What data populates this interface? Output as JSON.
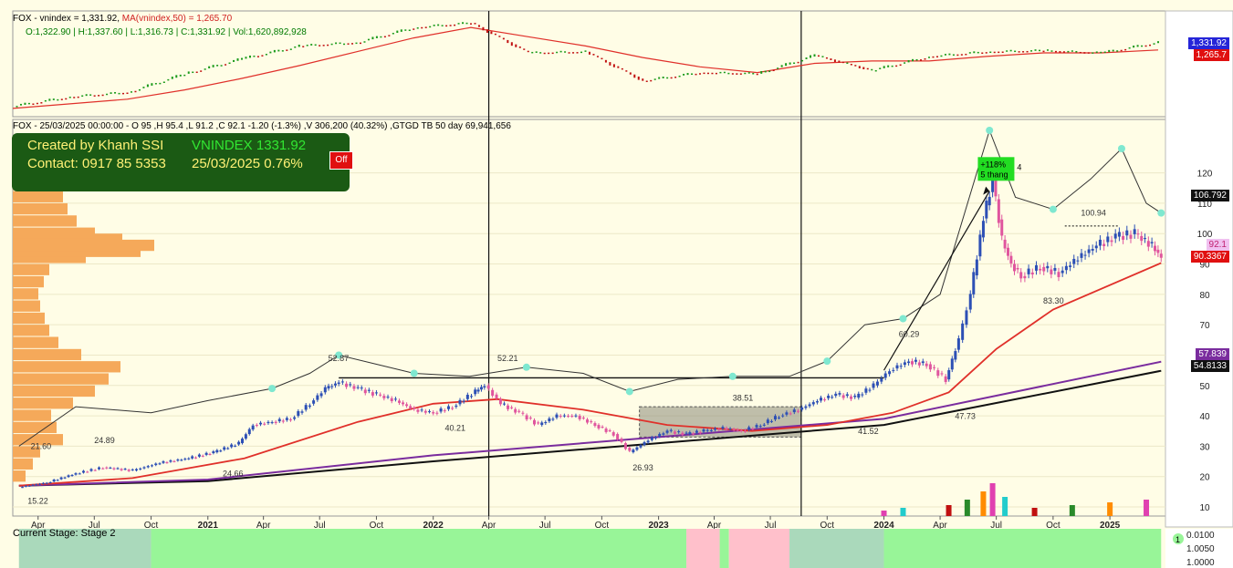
{
  "top_panel": {
    "title_ticker": "FOX - vnindex = 1,331.92, ",
    "title_ma": "MA(vnindex,50) = 1,265.70",
    "ohlc": "O:1,322.90  | H:1,337.60  | L:1,316.73  | C:1,331.92  | Vol:1,620,892,928",
    "tag_price": "1,331.92",
    "tag_ma": "1,265.7"
  },
  "main_panel": {
    "header": "FOX - 25/03/2025 00:00:00  -  O 95 ,H 95.4 ,L 91.2 ,C 92.1 -1.20 (-1.3%) ,V 306,200 (40.32%) ,GTGD TB 50 day 69,941,656",
    "credit_line1": "Created by Khanh SSI",
    "credit_line2": "Contact: 0917 85 5353",
    "credit_index": "VNINDEX 1331.92",
    "credit_date": "25/03/2025  0.76%",
    "off_button": "Off",
    "gain_label_1": "+118%",
    "gain_label_2": "5 thang",
    "gain_suffix": "4",
    "tags": {
      "ref": "106.792",
      "price": "92.1",
      "ma50": "90.3367",
      "ma_purple": "57.839",
      "ma_black": "54.8133"
    }
  },
  "stage_panel": {
    "label": "Current Stage: Stage 2",
    "badge": "1",
    "ticks": [
      "0.0100",
      "1.0050",
      "1.0000"
    ]
  },
  "colors": {
    "background": "#fffde6",
    "up_candle": "#2c4fb5",
    "down_candle": "#e0559e",
    "ma_red": "#e0302a",
    "ma_purple": "#7a2c9e",
    "ma_black": "#111111",
    "rs_line": "#333333",
    "rs_marker": "#7fe8d0",
    "volume_profile": "#f5a95a",
    "stage2_green": "#98f598",
    "stage_pink": "#ffc0cb",
    "stage_grey_green": "#aad9bb"
  },
  "chart_data": [
    {
      "type": "line",
      "title": "vnindex",
      "series": [
        {
          "name": "vnindex",
          "x": [
            "2020-03",
            "2020-06",
            "2020-09",
            "2020-12",
            "2021-03",
            "2021-06",
            "2021-09",
            "2021-12",
            "2022-03",
            "2022-05",
            "2022-08",
            "2022-11",
            "2023-02",
            "2023-05",
            "2023-08",
            "2023-11",
            "2024-02",
            "2024-05",
            "2024-08",
            "2024-11",
            "2025-03"
          ],
          "values": [
            780,
            860,
            900,
            1060,
            1190,
            1300,
            1330,
            1460,
            1500,
            1240,
            1250,
            1000,
            1070,
            1060,
            1220,
            1090,
            1210,
            1250,
            1260,
            1240,
            1331.92
          ]
        },
        {
          "name": "MA(vnindex,50)",
          "values": [
            760,
            800,
            840,
            920,
            1020,
            1130,
            1250,
            1370,
            1460,
            1380,
            1300,
            1200,
            1120,
            1070,
            1150,
            1170,
            1170,
            1210,
            1240,
            1240,
            1265.7
          ]
        }
      ]
    },
    {
      "type": "line",
      "title": "FOX",
      "x_ticks": [
        "Apr",
        "Jul",
        "Oct",
        "2021",
        "Apr",
        "Jul",
        "Oct",
        "2022",
        "Apr",
        "Jul",
        "Oct",
        "2023",
        "Apr",
        "Jul",
        "Oct",
        "2024",
        "Apr",
        "Jul",
        "Oct",
        "2025"
      ],
      "y_ticks": [
        10,
        20,
        30,
        40,
        50,
        60,
        70,
        80,
        90,
        100,
        110,
        120
      ],
      "ylim": [
        7,
        134
      ],
      "close_points": [
        [
          "2020-03-01",
          16.5
        ],
        [
          "2020-04-15",
          18
        ],
        [
          "2020-06-01",
          21
        ],
        [
          "2020-07-15",
          23
        ],
        [
          "2020-09-01",
          22
        ],
        [
          "2020-10-15",
          24.5
        ],
        [
          "2020-12-01",
          26
        ],
        [
          "2021-01-10",
          28
        ],
        [
          "2021-02-20",
          31
        ],
        [
          "2021-03-15",
          37
        ],
        [
          "2021-04-15",
          38
        ],
        [
          "2021-05-15",
          39
        ],
        [
          "2021-06-15",
          44
        ],
        [
          "2021-07-10",
          49
        ],
        [
          "2021-08-01",
          51
        ],
        [
          "2021-09-01",
          49
        ],
        [
          "2021-10-01",
          47
        ],
        [
          "2021-11-01",
          45
        ],
        [
          "2021-12-01",
          42
        ],
        [
          "2022-01-01",
          41
        ],
        [
          "2022-02-01",
          43
        ],
        [
          "2022-03-10",
          48
        ],
        [
          "2022-03-25",
          50
        ],
        [
          "2022-04-20",
          44
        ],
        [
          "2022-05-20",
          41
        ],
        [
          "2022-06-20",
          37
        ],
        [
          "2022-07-20",
          40
        ],
        [
          "2022-08-20",
          40
        ],
        [
          "2022-09-20",
          37
        ],
        [
          "2022-10-20",
          34
        ],
        [
          "2022-11-15",
          28
        ],
        [
          "2022-12-15",
          32
        ],
        [
          "2023-01-15",
          35
        ],
        [
          "2023-02-15",
          34
        ],
        [
          "2023-03-15",
          35
        ],
        [
          "2023-04-15",
          36
        ],
        [
          "2023-05-15",
          35
        ],
        [
          "2023-06-15",
          37
        ],
        [
          "2023-07-15",
          40
        ],
        [
          "2023-08-15",
          42
        ],
        [
          "2023-09-15",
          45
        ],
        [
          "2023-10-15",
          47
        ],
        [
          "2023-11-15",
          46
        ],
        [
          "2023-12-15",
          50
        ],
        [
          "2024-01-10",
          55
        ],
        [
          "2024-02-10",
          58
        ],
        [
          "2024-03-10",
          57
        ],
        [
          "2024-04-10",
          52
        ],
        [
          "2024-05-01",
          65
        ],
        [
          "2024-05-20",
          80
        ],
        [
          "2024-06-10",
          105
        ],
        [
          "2024-06-25",
          118
        ],
        [
          "2024-07-10",
          98
        ],
        [
          "2024-07-25",
          90
        ],
        [
          "2024-08-10",
          86
        ],
        [
          "2024-09-10",
          89
        ],
        [
          "2024-10-10",
          87
        ],
        [
          "2024-11-10",
          92
        ],
        [
          "2024-12-10",
          96
        ],
        [
          "2025-01-10",
          99
        ],
        [
          "2025-02-10",
          100
        ],
        [
          "2025-03-10",
          96
        ],
        [
          "2025-03-25",
          92.1
        ]
      ],
      "ma50_points": [
        [
          "2020-03-01",
          17
        ],
        [
          "2020-09-01",
          19.5
        ],
        [
          "2021-03-01",
          26
        ],
        [
          "2021-09-01",
          38
        ],
        [
          "2022-01-01",
          44
        ],
        [
          "2022-04-15",
          45.5
        ],
        [
          "2022-09-01",
          42
        ],
        [
          "2023-01-15",
          37
        ],
        [
          "2023-06-01",
          35
        ],
        [
          "2023-10-01",
          37
        ],
        [
          "2024-01-15",
          41
        ],
        [
          "2024-04-15",
          47.73
        ],
        [
          "2024-07-01",
          62
        ],
        [
          "2024-10-01",
          75
        ],
        [
          "2025-03-25",
          90.3367
        ]
      ],
      "ma_purple_points": [
        [
          "2020-03-01",
          17
        ],
        [
          "2021-01-01",
          19
        ],
        [
          "2022-01-01",
          27
        ],
        [
          "2023-01-01",
          33
        ],
        [
          "2024-01-01",
          39
        ],
        [
          "2025-03-25",
          57.839
        ]
      ],
      "ma_black_points": [
        [
          "2020-03-01",
          17
        ],
        [
          "2021-01-01",
          18.5
        ],
        [
          "2022-01-01",
          25
        ],
        [
          "2023-01-01",
          31
        ],
        [
          "2024-01-01",
          37
        ],
        [
          "2025-03-25",
          54.8133
        ]
      ],
      "rs_line_points": [
        [
          "2020-03-01",
          30
        ],
        [
          "2020-06-01",
          43
        ],
        [
          "2020-10-01",
          41
        ],
        [
          "2021-01-01",
          45
        ],
        [
          "2021-04-15",
          49
        ],
        [
          "2021-06-15",
          54
        ],
        [
          "2021-08-01",
          60
        ],
        [
          "2021-10-01",
          57
        ],
        [
          "2021-12-01",
          54
        ],
        [
          "2022-03-01",
          53
        ],
        [
          "2022-06-01",
          56
        ],
        [
          "2022-09-01",
          54
        ],
        [
          "2022-11-15",
          48
        ],
        [
          "2023-02-01",
          52
        ],
        [
          "2023-05-01",
          53
        ],
        [
          "2023-08-01",
          53
        ],
        [
          "2023-10-01",
          58
        ],
        [
          "2023-12-01",
          70
        ],
        [
          "2024-02-01",
          72
        ],
        [
          "2024-04-01",
          80
        ],
        [
          "2024-06-20",
          134
        ],
        [
          "2024-08-01",
          112
        ],
        [
          "2024-10-01",
          108
        ],
        [
          "2024-12-01",
          118
        ],
        [
          "2025-01-20",
          128
        ],
        [
          "2025-03-01",
          110
        ],
        [
          "2025-03-25",
          106.792
        ]
      ],
      "volume_bars": [
        [
          "2024-01-01",
          2
        ],
        [
          "2024-02-01",
          3
        ],
        [
          "2024-04-15",
          4
        ],
        [
          "2024-05-15",
          6
        ],
        [
          "2024-06-10",
          9
        ],
        [
          "2024-06-25",
          12
        ],
        [
          "2024-07-15",
          7
        ],
        [
          "2024-09-01",
          3
        ],
        [
          "2024-11-01",
          4
        ],
        [
          "2025-01-01",
          5
        ],
        [
          "2025-03-01",
          6
        ]
      ],
      "annotations": [
        {
          "label": "21.60",
          "x": "2020-03-20",
          "y": 29
        },
        {
          "label": "24.89",
          "x": "2020-07-01",
          "y": 31
        },
        {
          "label": "24.66",
          "x": "2021-01-25",
          "y": 20
        },
        {
          "label": "15.22",
          "x": "2020-03-15",
          "y": 11
        },
        {
          "label": "52.87",
          "x": "2021-07-15",
          "y": 58
        },
        {
          "label": "52.21",
          "x": "2022-04-15",
          "y": 58
        },
        {
          "label": "40.21",
          "x": "2022-01-20",
          "y": 35
        },
        {
          "label": "26.93",
          "x": "2022-11-20",
          "y": 22
        },
        {
          "label": "38.51",
          "x": "2023-05-01",
          "y": 45
        },
        {
          "label": "41.52",
          "x": "2023-11-20",
          "y": 34
        },
        {
          "label": "60.29",
          "x": "2024-01-25",
          "y": 66
        },
        {
          "label": "47.73",
          "x": "2024-04-25",
          "y": 39
        },
        {
          "label": "83.30",
          "x": "2024-09-15",
          "y": 77
        },
        {
          "label": "100.94",
          "x": "2024-11-15",
          "y": 106
        }
      ],
      "resistance_line": {
        "from": "2021-08-01",
        "to": "2024-01-01",
        "value": 52.5
      },
      "base_box": {
        "from": "2022-12-01",
        "to": "2023-08-20",
        "low": 33,
        "high": 43
      },
      "vertical_markers": [
        "2022-04-01",
        "2023-08-20"
      ]
    },
    {
      "type": "table",
      "title": "Current Stage",
      "segments": [
        {
          "from": "2020-03-01",
          "to": "2020-10-01",
          "stage": "grey-green"
        },
        {
          "from": "2020-10-01",
          "to": "2023-02-15",
          "stage": "stage2"
        },
        {
          "from": "2023-02-15",
          "to": "2023-04-10",
          "stage": "pink"
        },
        {
          "from": "2023-04-10",
          "to": "2023-04-25",
          "stage": "stage2"
        },
        {
          "from": "2023-04-25",
          "to": "2023-08-01",
          "stage": "pink"
        },
        {
          "from": "2023-08-01",
          "to": "2024-01-01",
          "stage": "grey-green"
        },
        {
          "from": "2024-01-01",
          "to": "2025-03-25",
          "stage": "stage2"
        }
      ]
    }
  ]
}
